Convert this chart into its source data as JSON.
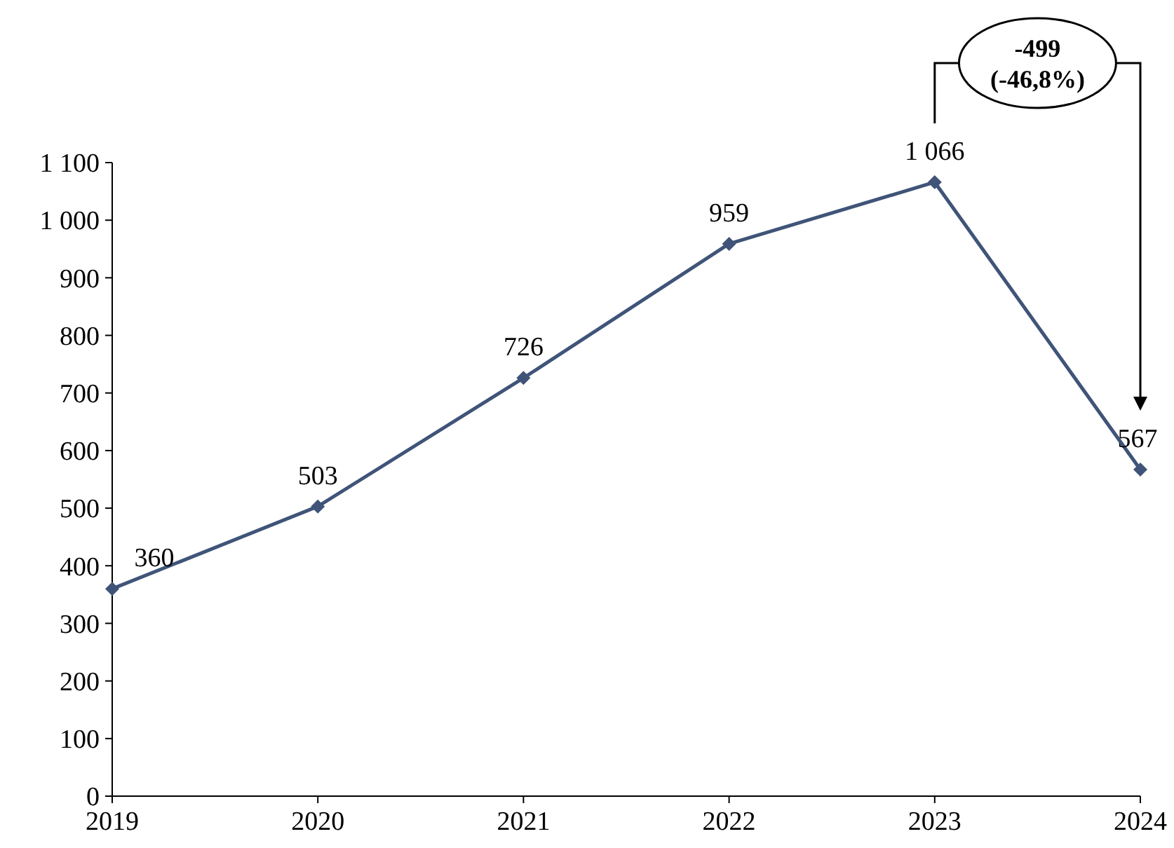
{
  "chart_data": {
    "type": "line",
    "categories": [
      "2019",
      "2020",
      "2021",
      "2022",
      "2023",
      "2024"
    ],
    "series": [
      {
        "color": "#3f5478",
        "values": [
          360,
          503,
          726,
          959,
          1066,
          567
        ],
        "value_labels": [
          "360",
          "503",
          "726",
          "959",
          "1 066",
          "567"
        ]
      }
    ],
    "ylim": [
      0,
      1100
    ],
    "yticks": [
      0,
      100,
      200,
      300,
      400,
      500,
      600,
      700,
      800,
      900,
      {
        "value": 1000,
        "label": "1 000"
      },
      {
        "value": 1100,
        "label": "1 100"
      }
    ],
    "grid": false,
    "marker": "diamond",
    "line_style": "solid",
    "annotations": [
      "-499\n(-46,8%)"
    ]
  }
}
